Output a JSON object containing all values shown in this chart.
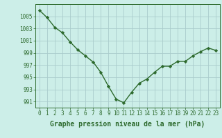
{
  "x": [
    0,
    1,
    2,
    3,
    4,
    5,
    6,
    7,
    8,
    9,
    10,
    11,
    12,
    13,
    14,
    15,
    16,
    17,
    18,
    19,
    20,
    21,
    22,
    23
  ],
  "y": [
    1006.0,
    1004.8,
    1003.2,
    1002.3,
    1000.8,
    999.5,
    998.5,
    997.5,
    995.8,
    993.5,
    991.4,
    990.8,
    992.5,
    994.0,
    994.7,
    995.8,
    996.8,
    996.8,
    997.6,
    997.6,
    998.5,
    999.2,
    999.8,
    999.4
  ],
  "line_color": "#2d6a2d",
  "marker": "D",
  "marker_size": 2.2,
  "bg_color": "#cceee8",
  "grid_color": "#aacccc",
  "xlabel": "Graphe pression niveau de la mer (hPa)",
  "ylim": [
    990,
    1007
  ],
  "yticks": [
    991,
    993,
    995,
    997,
    999,
    1001,
    1003,
    1005
  ],
  "xticks": [
    0,
    1,
    2,
    3,
    4,
    5,
    6,
    7,
    8,
    9,
    10,
    11,
    12,
    13,
    14,
    15,
    16,
    17,
    18,
    19,
    20,
    21,
    22,
    23
  ],
  "tick_label_color": "#2d6a2d",
  "tick_label_fontsize": 5.5,
  "xlabel_fontsize": 7.0,
  "linewidth": 1.0
}
